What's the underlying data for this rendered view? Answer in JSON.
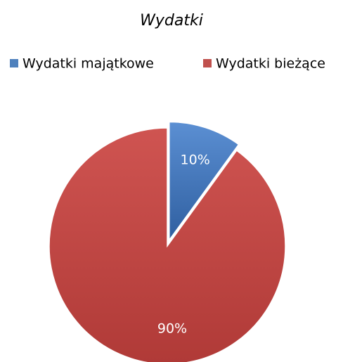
{
  "chart_data": {
    "type": "pie",
    "title": "Wydatki",
    "categories": [
      "Wydatki majątkowe",
      "Wydatki bieżące"
    ],
    "values": [
      10,
      90
    ],
    "value_labels": [
      "10%",
      "90%"
    ],
    "colors": [
      "#4f81bd",
      "#c0504d"
    ],
    "exploded": [
      true,
      false
    ],
    "legend": "top"
  }
}
